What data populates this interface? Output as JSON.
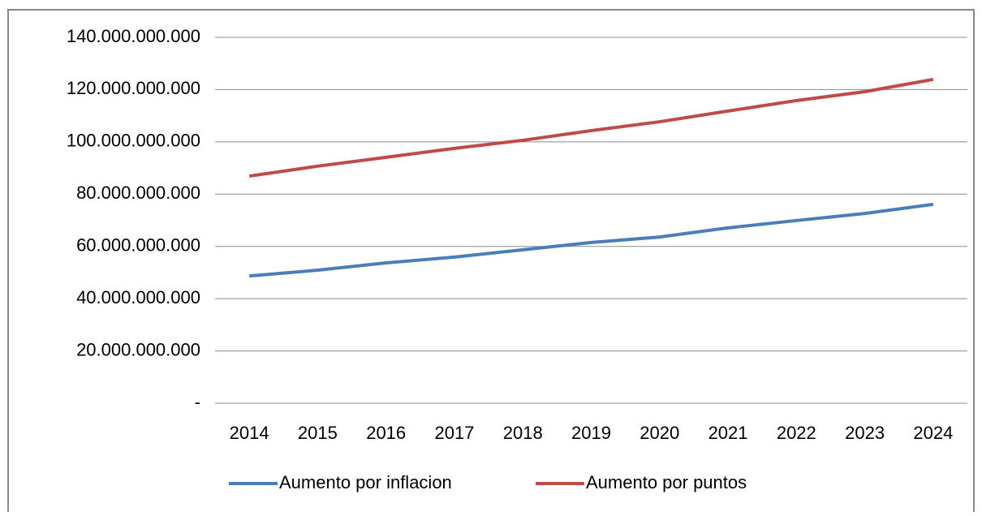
{
  "chart_data": {
    "type": "line",
    "categories": [
      "2014",
      "2015",
      "2016",
      "2017",
      "2018",
      "2019",
      "2020",
      "2021",
      "2022",
      "2023",
      "2024"
    ],
    "series": [
      {
        "name": "Aumento por inflacion",
        "color": "#4a7ebb",
        "values": [
          48700000000,
          50900000000,
          53700000000,
          55900000000,
          58700000000,
          61500000000,
          63600000000,
          67100000000,
          69900000000,
          72600000000,
          76100000000
        ]
      },
      {
        "name": "Aumento por puntos",
        "color": "#be4b48",
        "values": [
          86900000000,
          90700000000,
          94100000000,
          97500000000,
          100600000000,
          104300000000,
          107700000000,
          111800000000,
          115800000000,
          119200000000,
          123900000000
        ]
      }
    ],
    "ylim": [
      0,
      140000000000
    ],
    "yticks": [
      {
        "value": 0,
        "label": "-"
      },
      {
        "value": 20000000000,
        "label": "20.000.000.000"
      },
      {
        "value": 40000000000,
        "label": "40.000.000.000"
      },
      {
        "value": 60000000000,
        "label": "60.000.000.000"
      },
      {
        "value": 80000000000,
        "label": "80.000.000.000"
      },
      {
        "value": 100000000000,
        "label": "100.000.000.000"
      },
      {
        "value": 120000000000,
        "label": "120.000.000.000"
      },
      {
        "value": 140000000000,
        "label": "140.000.000.000"
      }
    ],
    "grid": true,
    "legend": "bottom"
  }
}
